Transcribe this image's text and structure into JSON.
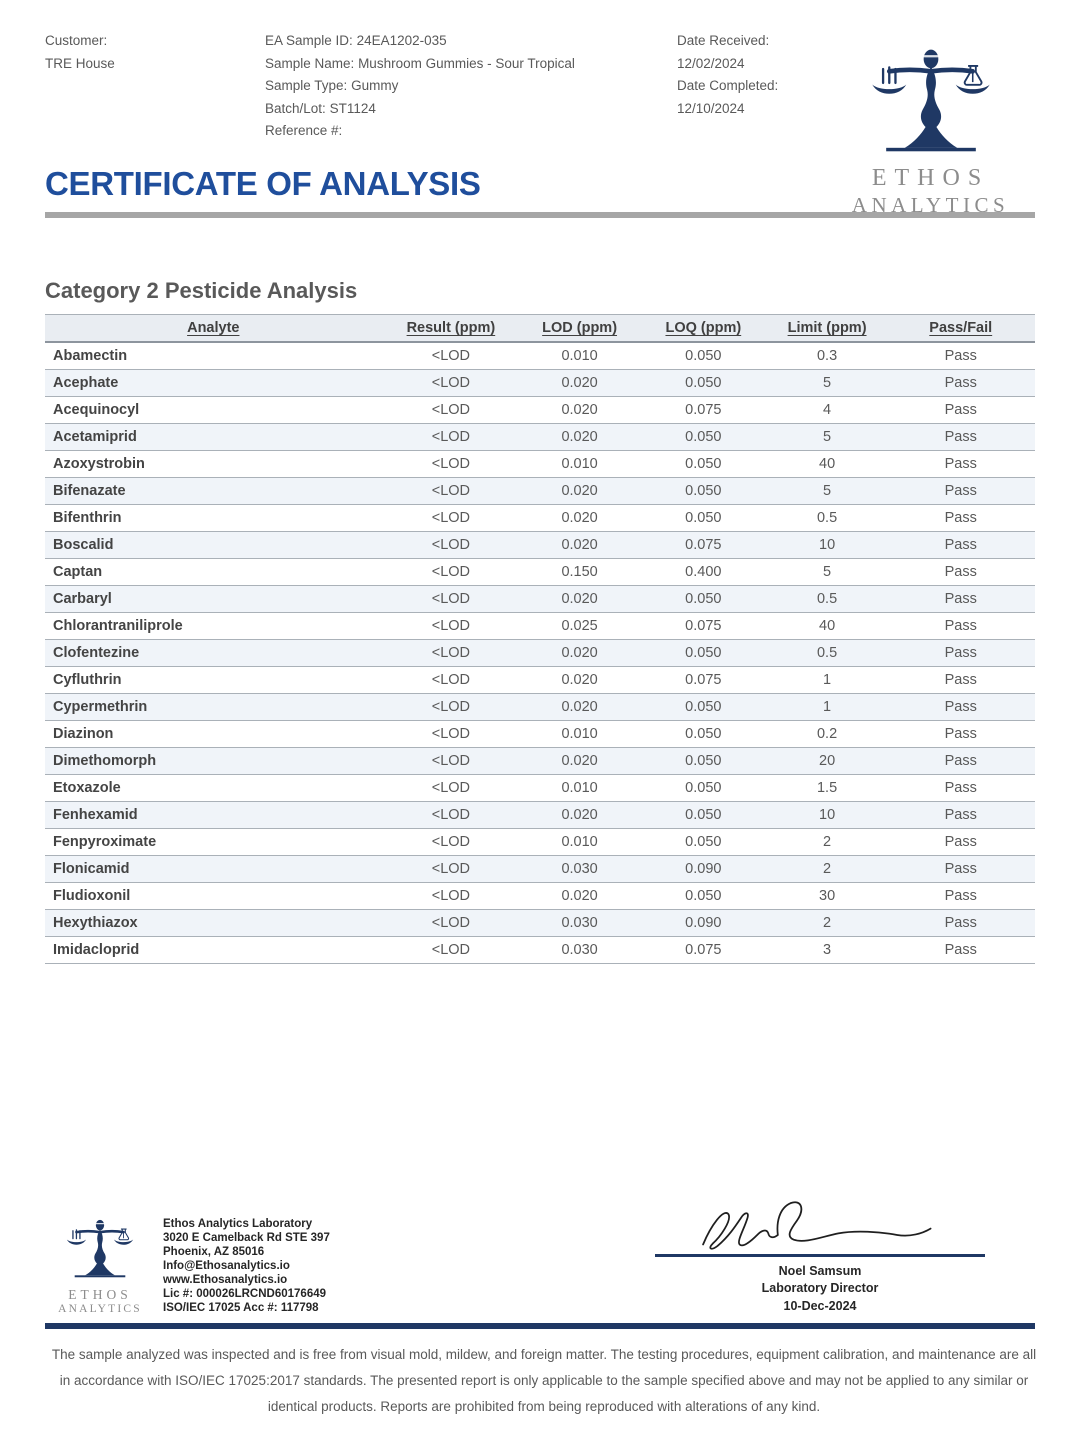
{
  "header": {
    "customer": {
      "label": "Customer:",
      "value": "TRE House"
    },
    "sample_info": [
      {
        "label": "EA Sample ID:",
        "value": "24EA1202-035"
      },
      {
        "label": "Sample Name:",
        "value": "Mushroom Gummies - Sour Tropical"
      },
      {
        "label": "Sample Type:",
        "value": "Gummy"
      },
      {
        "label": "Batch/Lot:",
        "value": "ST1124"
      },
      {
        "label": "Reference #:",
        "value": ""
      }
    ],
    "dates": {
      "received_label": "Date Received:",
      "received_value": "12/02/2024",
      "completed_label": "Date Completed:",
      "completed_value": "12/10/2024"
    },
    "title": "CERTIFICATE OF ANALYSIS"
  },
  "logo": {
    "line1": "ETHOS",
    "line2": "ANALYTICS"
  },
  "section": {
    "title": "Category 2 Pesticide Analysis"
  },
  "table": {
    "columns": [
      "Analyte",
      "Result (ppm)",
      "LOD (ppm)",
      "LOQ (ppm)",
      "Limit (ppm)",
      "Pass/Fail"
    ],
    "rows": [
      [
        "Abamectin",
        "<LOD",
        "0.010",
        "0.050",
        "0.3",
        "Pass"
      ],
      [
        "Acephate",
        "<LOD",
        "0.020",
        "0.050",
        "5",
        "Pass"
      ],
      [
        "Acequinocyl",
        "<LOD",
        "0.020",
        "0.075",
        "4",
        "Pass"
      ],
      [
        "Acetamiprid",
        "<LOD",
        "0.020",
        "0.050",
        "5",
        "Pass"
      ],
      [
        "Azoxystrobin",
        "<LOD",
        "0.010",
        "0.050",
        "40",
        "Pass"
      ],
      [
        "Bifenazate",
        "<LOD",
        "0.020",
        "0.050",
        "5",
        "Pass"
      ],
      [
        "Bifenthrin",
        "<LOD",
        "0.020",
        "0.050",
        "0.5",
        "Pass"
      ],
      [
        "Boscalid",
        "<LOD",
        "0.020",
        "0.075",
        "10",
        "Pass"
      ],
      [
        "Captan",
        "<LOD",
        "0.150",
        "0.400",
        "5",
        "Pass"
      ],
      [
        "Carbaryl",
        "<LOD",
        "0.020",
        "0.050",
        "0.5",
        "Pass"
      ],
      [
        "Chlorantraniliprole",
        "<LOD",
        "0.025",
        "0.075",
        "40",
        "Pass"
      ],
      [
        "Clofentezine",
        "<LOD",
        "0.020",
        "0.050",
        "0.5",
        "Pass"
      ],
      [
        "Cyfluthrin",
        "<LOD",
        "0.020",
        "0.075",
        "1",
        "Pass"
      ],
      [
        "Cypermethrin",
        "<LOD",
        "0.020",
        "0.050",
        "1",
        "Pass"
      ],
      [
        "Diazinon",
        "<LOD",
        "0.010",
        "0.050",
        "0.2",
        "Pass"
      ],
      [
        "Dimethomorph",
        "<LOD",
        "0.020",
        "0.050",
        "20",
        "Pass"
      ],
      [
        "Etoxazole",
        "<LOD",
        "0.010",
        "0.050",
        "1.5",
        "Pass"
      ],
      [
        "Fenhexamid",
        "<LOD",
        "0.020",
        "0.050",
        "10",
        "Pass"
      ],
      [
        "Fenpyroximate",
        "<LOD",
        "0.010",
        "0.050",
        "2",
        "Pass"
      ],
      [
        "Flonicamid",
        "<LOD",
        "0.030",
        "0.090",
        "2",
        "Pass"
      ],
      [
        "Fludioxonil",
        "<LOD",
        "0.020",
        "0.050",
        "30",
        "Pass"
      ],
      [
        "Hexythiazox",
        "<LOD",
        "0.030",
        "0.090",
        "2",
        "Pass"
      ],
      [
        "Imidacloprid",
        "<LOD",
        "0.030",
        "0.075",
        "3",
        "Pass"
      ]
    ]
  },
  "footer": {
    "lab_info": [
      "Ethos Analytics Laboratory",
      "3020 E Camelback Rd STE 397",
      "Phoenix, AZ 85016",
      "Info@Ethosanalytics.io",
      "www.Ethosanalytics.io",
      "Lic #: 000026LRCND60176649",
      "ISO/IEC 17025 Acc #: 117798"
    ],
    "signatory": {
      "name": "Noel Samsum",
      "title": "Laboratory Director",
      "date": "10-Dec-2024"
    },
    "disclaimer": "The sample analyzed was inspected and is free from visual mold, mildew, and foreign matter. The testing procedures, equipment calibration, and maintenance are all in accordance with ISO/IEC 17025:2017 standards. The presented report is only applicable to the sample specified above and may not be applied to any similar or identical products. Reports are prohibited from being reproduced with alterations of any kind."
  },
  "colors": {
    "title_blue": "#1F4E9C",
    "navy": "#1F3864",
    "rule_gray": "#A6A6A6",
    "text_gray": "#595959",
    "row_shade": "#F0F4F9"
  }
}
